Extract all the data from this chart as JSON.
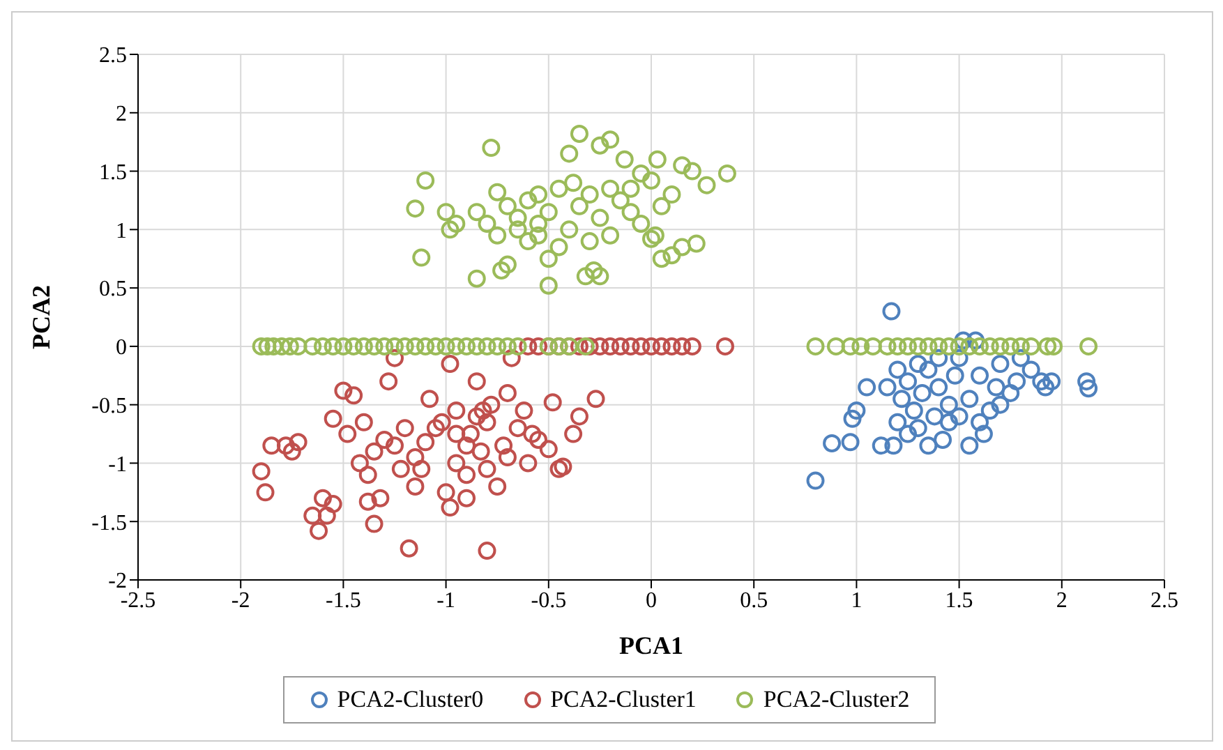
{
  "chart_data": {
    "type": "scatter",
    "xlabel": "PCA1",
    "ylabel": "PCA2",
    "xlim": [
      -2.5,
      2.5
    ],
    "xticks": [
      -2.5,
      -2,
      -1.5,
      -1,
      -0.5,
      0,
      0.5,
      1,
      1.5,
      2,
      2.5
    ],
    "ylim": [
      -2,
      2.5
    ],
    "yticks": [
      -2,
      -1.5,
      -1,
      -0.5,
      0,
      0.5,
      1,
      1.5,
      2,
      2.5
    ],
    "grid": true,
    "legend": "bottom",
    "marker": "circle",
    "series": [
      {
        "name": "PCA2-Cluster0",
        "color": "#4f81bd",
        "x": [
          0.8,
          0.88,
          0.97,
          0.98,
          1,
          1.05,
          1.17,
          1.12,
          1.18,
          1.2,
          1.22,
          1.25,
          1.28,
          1.3,
          1.32,
          1.35,
          1.38,
          1.4,
          1.42,
          1.45,
          1.48,
          1.5,
          1.52,
          1.55,
          1.58,
          1.6,
          1.62,
          1.65,
          1.68,
          1.7,
          1.75,
          1.78,
          1.8,
          1.9,
          1.92,
          1.95,
          2.12,
          2.13,
          1.55,
          1.25,
          1.35,
          1.45,
          1.15,
          1.3,
          1.6,
          1.5,
          1.2,
          1.7,
          1.4,
          1.85
        ],
        "values": [
          -1.15,
          -0.83,
          -0.82,
          -0.62,
          -0.55,
          -0.35,
          0.3,
          -0.85,
          -0.85,
          -0.65,
          -0.45,
          -0.3,
          -0.55,
          -0.7,
          -0.4,
          -0.2,
          -0.6,
          -0.35,
          -0.8,
          -0.5,
          -0.25,
          -0.1,
          0.05,
          -0.45,
          0.05,
          -0.65,
          -0.75,
          -0.55,
          -0.35,
          -0.15,
          -0.4,
          -0.3,
          -0.1,
          -0.3,
          -0.35,
          -0.3,
          -0.3,
          -0.36,
          -0.85,
          -0.75,
          -0.85,
          -0.65,
          -0.35,
          -0.15,
          -0.25,
          -0.6,
          -0.2,
          -0.5,
          -0.1,
          -0.2
        ]
      },
      {
        "name": "PCA2-Cluster1",
        "color": "#c0504d",
        "x": [
          -1.9,
          -1.88,
          -1.85,
          -1.78,
          -1.75,
          -1.72,
          -1.65,
          -1.62,
          -1.58,
          -1.55,
          -1.6,
          -1.55,
          -1.5,
          -1.45,
          -1.48,
          -1.4,
          -1.42,
          -1.38,
          -1.32,
          -1.38,
          -1.35,
          -1.3,
          -1.25,
          -1.28,
          -1.25,
          -1.2,
          -1.15,
          -1.12,
          -1.1,
          -1.05,
          -1.18,
          -1,
          -0.98,
          -0.95,
          -0.9,
          -0.88,
          -0.85,
          -0.82,
          -0.8,
          -0.78,
          -0.83,
          -0.8,
          -0.75,
          -0.9,
          -0.8,
          -0.72,
          -0.7,
          -0.65,
          -0.62,
          -0.6,
          -0.55,
          -0.5,
          -0.45,
          -0.43,
          -0.38,
          -0.35,
          -0.48,
          -0.27,
          -0.98,
          -1.02,
          -1.08,
          -0.95,
          -1.15,
          -0.7,
          -0.68,
          -0.85,
          -1.35,
          -1.22,
          -0.9,
          -0.58,
          -0.95,
          -0.6,
          -0.55,
          -0.5,
          -0.45,
          -0.4,
          -0.35,
          -0.3,
          -0.25,
          -0.2,
          -0.15,
          -0.1,
          -0.05,
          0,
          0.05,
          0.1,
          0.15,
          0.2,
          0.36
        ],
        "values": [
          -1.07,
          -1.25,
          -0.85,
          -0.85,
          -0.9,
          -0.82,
          -1.45,
          -1.58,
          -1.45,
          -1.35,
          -1.3,
          -0.62,
          -0.38,
          -0.42,
          -0.75,
          -0.65,
          -1,
          -1.1,
          -1.3,
          -1.33,
          -1.52,
          -0.8,
          -0.85,
          -0.3,
          -0.1,
          -0.7,
          -0.95,
          -1.05,
          -0.82,
          -0.7,
          -1.73,
          -1.25,
          -1.38,
          -1,
          -0.85,
          -0.75,
          -0.6,
          -0.55,
          -0.65,
          -0.5,
          -0.9,
          -1.05,
          -1.2,
          -1.3,
          -1.75,
          -0.85,
          -0.95,
          -0.7,
          -0.55,
          -1,
          -0.8,
          -0.88,
          -1.05,
          -1.03,
          -0.75,
          -0.6,
          -0.48,
          -0.45,
          -0.15,
          -0.65,
          -0.45,
          -0.55,
          -1.2,
          -0.4,
          -0.1,
          -0.3,
          -0.9,
          -1.05,
          -1.1,
          -0.75,
          -0.75,
          0,
          0,
          0,
          0,
          0,
          0,
          0,
          0,
          0,
          0,
          0,
          0,
          0,
          0,
          0,
          0,
          0,
          0
        ]
      },
      {
        "name": "PCA2-Cluster2",
        "color": "#9bbb59",
        "x": [
          -0.78,
          -1.1,
          -1.15,
          -1.12,
          -0.85,
          0.37,
          -0.35,
          -0.2,
          -0.4,
          -0.25,
          -0.13,
          0.03,
          0.15,
          0.2,
          0.27,
          -0.05,
          0,
          0.1,
          0.22,
          0.15,
          0.05,
          0.1,
          0,
          -0.32,
          -0.28,
          -0.5,
          -0.5,
          -0.73,
          -0.7,
          -0.98,
          -1,
          -0.95,
          -0.75,
          -0.7,
          -0.6,
          -0.55,
          -0.45,
          -0.38,
          -0.3,
          -0.2,
          -0.15,
          -0.1,
          -0.25,
          -0.4,
          -0.55,
          -0.65,
          -0.75,
          -0.85,
          -0.6,
          -0.45,
          -0.3,
          -0.2,
          -0.05,
          0.05,
          -0.65,
          -0.5,
          -0.35,
          -0.1,
          -0.8,
          -0.55,
          -0.25,
          0.02,
          -1.9,
          -1.87,
          -1.84,
          -1.8,
          -1.76,
          -1.72,
          -1.65,
          -1.6,
          -1.55,
          -1.5,
          -1.45,
          -1.4,
          -1.35,
          -1.3,
          -1.25,
          -1.2,
          -1.15,
          -1.1,
          -1.05,
          -1,
          -0.95,
          -0.9,
          -0.85,
          -0.8,
          -0.75,
          -0.7,
          -0.65,
          -0.5,
          -0.45,
          -0.4,
          -0.32,
          0.8,
          0.9,
          0.97,
          1.02,
          1.08,
          1.15,
          1.2,
          1.25,
          1.3,
          1.35,
          1.4,
          1.45,
          1.5,
          1.55,
          1.6,
          1.65,
          1.7,
          1.75,
          1.8,
          1.85,
          1.93,
          1.96,
          2.13
        ],
        "values": [
          1.7,
          1.42,
          1.18,
          0.76,
          0.58,
          1.48,
          1.82,
          1.77,
          1.65,
          1.72,
          1.6,
          1.6,
          1.55,
          1.5,
          1.38,
          1.48,
          1.42,
          1.3,
          0.88,
          0.85,
          0.75,
          0.78,
          0.92,
          0.6,
          0.65,
          0.52,
          0.75,
          0.65,
          0.7,
          1,
          1.15,
          1.05,
          1.32,
          1.2,
          1.25,
          1.3,
          1.35,
          1.4,
          1.3,
          1.35,
          1.25,
          1.15,
          1.1,
          1,
          1.05,
          1,
          0.95,
          1.15,
          0.9,
          0.85,
          0.9,
          0.95,
          1.05,
          1.2,
          1.1,
          1.15,
          1.2,
          1.35,
          1.05,
          0.95,
          0.6,
          0.95,
          0,
          0,
          0,
          0,
          0,
          0,
          0,
          0,
          0,
          0,
          0,
          0,
          0,
          0,
          0,
          0,
          0,
          0,
          0,
          0,
          0,
          0,
          0,
          0,
          0,
          0,
          0,
          0,
          0,
          0,
          0,
          0,
          0,
          0,
          0,
          0,
          0,
          0,
          0,
          0,
          0,
          0,
          0,
          0,
          0,
          0,
          0,
          0,
          0,
          0,
          0,
          0,
          0,
          0
        ]
      }
    ]
  }
}
